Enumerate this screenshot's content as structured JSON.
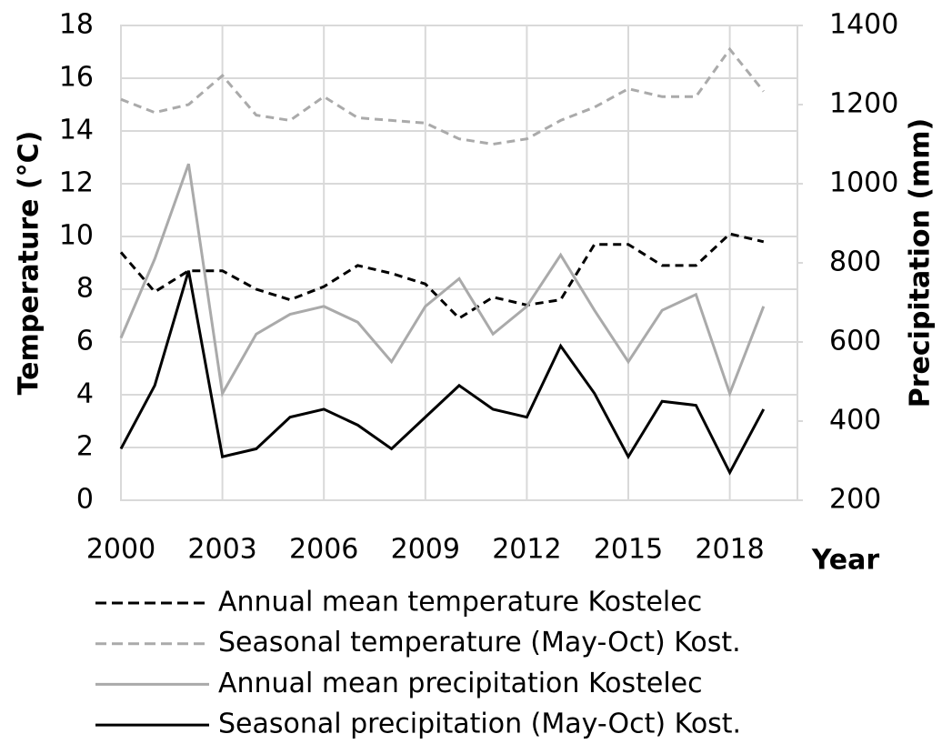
{
  "chart_data": {
    "type": "line",
    "y_label": "Temperature (°C)",
    "y2_label": "Precipitation (mm)",
    "x_label": "Year",
    "x": [
      2000,
      2001,
      2002,
      2003,
      2004,
      2005,
      2006,
      2007,
      2008,
      2009,
      2010,
      2011,
      2012,
      2013,
      2014,
      2015,
      2016,
      2017,
      2018,
      2019
    ],
    "xlim": [
      2000,
      2020
    ],
    "xticks": [
      2000,
      2003,
      2006,
      2009,
      2012,
      2015,
      2018
    ],
    "ylim": [
      0,
      18
    ],
    "yticks": [
      0,
      2,
      4,
      6,
      8,
      10,
      12,
      14,
      16,
      18
    ],
    "y2lim": [
      200,
      1400
    ],
    "y2ticks": [
      200,
      400,
      600,
      800,
      1000,
      1200,
      1400
    ],
    "grid": true,
    "series": [
      {
        "name": "Annual mean temperature Kostelec",
        "color": "#000000",
        "dashed": true,
        "values": [
          9.4,
          7.9,
          8.7,
          8.7,
          8.0,
          7.6,
          8.1,
          8.9,
          8.6,
          8.2,
          6.9,
          7.7,
          7.4,
          7.6,
          9.7,
          9.7,
          8.9,
          8.9,
          10.1,
          9.8
        ]
      },
      {
        "name": "Seasonal temperature (May-Oct) Kost.",
        "color": "#aaaaaa",
        "dashed": true,
        "values": [
          15.2,
          14.7,
          15.0,
          16.1,
          14.6,
          14.4,
          15.3,
          14.5,
          14.4,
          14.3,
          13.7,
          13.5,
          13.7,
          14.4,
          14.9,
          15.6,
          15.3,
          15.3,
          17.1,
          15.5
        ]
      },
      {
        "name": "Annual mean precipitation Kostelec",
        "color": "#aaaaaa",
        "dashed": false,
        "axis": "y2",
        "values": [
          610,
          810,
          1050,
          470,
          620,
          670,
          690,
          650,
          550,
          690,
          760,
          620,
          690,
          820,
          680,
          550,
          680,
          720,
          470,
          690
        ]
      },
      {
        "name": "Seasonal precipitation (May-Oct) Kost.",
        "color": "#000000",
        "dashed": false,
        "axis": "y2",
        "values": [
          330,
          490,
          780,
          310,
          330,
          410,
          430,
          390,
          330,
          410,
          490,
          430,
          410,
          590,
          470,
          310,
          450,
          440,
          270,
          430
        ]
      }
    ]
  }
}
